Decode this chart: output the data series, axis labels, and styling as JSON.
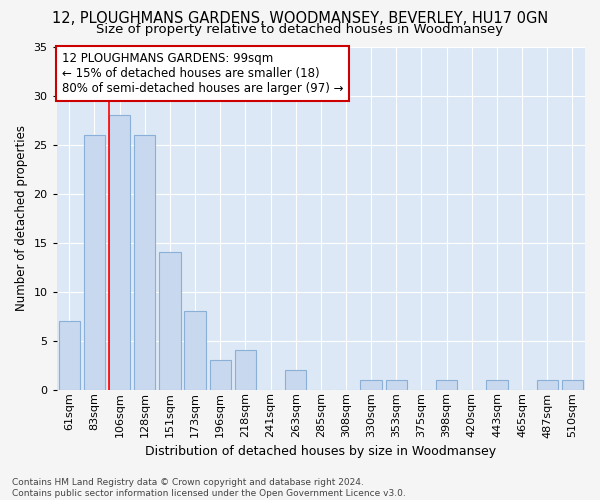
{
  "title": "12, PLOUGHMANS GARDENS, WOODMANSEY, BEVERLEY, HU17 0GN",
  "subtitle": "Size of property relative to detached houses in Woodmansey",
  "xlabel": "Distribution of detached houses by size in Woodmansey",
  "ylabel": "Number of detached properties",
  "categories": [
    "61sqm",
    "83sqm",
    "106sqm",
    "128sqm",
    "151sqm",
    "173sqm",
    "196sqm",
    "218sqm",
    "241sqm",
    "263sqm",
    "285sqm",
    "308sqm",
    "330sqm",
    "353sqm",
    "375sqm",
    "398sqm",
    "420sqm",
    "443sqm",
    "465sqm",
    "487sqm",
    "510sqm"
  ],
  "values": [
    7,
    26,
    28,
    26,
    14,
    8,
    3,
    4,
    0,
    2,
    0,
    0,
    1,
    1,
    0,
    1,
    0,
    1,
    0,
    1,
    1
  ],
  "bar_color": "#c8d8ee",
  "bar_edge_color": "#8ab0d8",
  "red_line_index": 2,
  "annotation_line1": "12 PLOUGHMANS GARDENS: 99sqm",
  "annotation_line2": "← 15% of detached houses are smaller (18)",
  "annotation_line3": "80% of semi-detached houses are larger (97) →",
  "annotation_box_color": "#ffffff",
  "annotation_box_edge": "#cc0000",
  "footer_text": "Contains HM Land Registry data © Crown copyright and database right 2024.\nContains public sector information licensed under the Open Government Licence v3.0.",
  "ylim": [
    0,
    35
  ],
  "yticks": [
    0,
    5,
    10,
    15,
    20,
    25,
    30,
    35
  ],
  "plot_bg_color": "#dce8f5",
  "fig_bg_color": "#f5f5f5",
  "grid_color": "#ffffff",
  "title_fontsize": 10.5,
  "subtitle_fontsize": 9.5,
  "ylabel_fontsize": 8.5,
  "xlabel_fontsize": 9,
  "tick_fontsize": 8,
  "footer_fontsize": 6.5,
  "annotation_fontsize": 8.5
}
